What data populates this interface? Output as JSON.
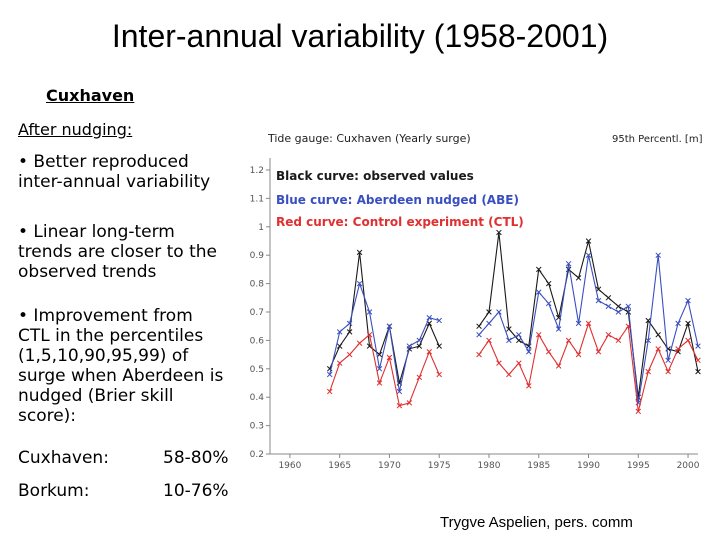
{
  "title": "Inter-annual variability (1958-2001)",
  "station": "Cuxhaven",
  "after_heading": "After nudging:",
  "bullets": [
    "• Better reproduced\ninter-annual variability",
    "• Linear long-term\ntrends are closer to the\nobserved trends",
    "• Improvement from\nCTL in the percentiles\n(1,5,10,90,95,99)  of\nsurge when Aberdeen is\nnudged (Brier skill\nscore):"
  ],
  "scores": [
    {
      "label": "Cuxhaven:",
      "value": "58-80%"
    },
    {
      "label": "Borkum:",
      "value": "10-76%"
    }
  ],
  "credit": "Trygve Aspelien, pers. comm",
  "colors": {
    "observed": "#1a1a1a",
    "aberdeen": "#3a4fbf",
    "control": "#e03030"
  },
  "chart_data": {
    "type": "line",
    "title": "Tide gauge: Cuxhaven (Yearly surge)",
    "subtitle": "95th Percentl. [m]",
    "xlim": [
      1958,
      2001
    ],
    "ylim": [
      0.2,
      1.2
    ],
    "x_ticks": [
      "1960",
      "1965",
      "1970",
      "1975",
      "1980",
      "1985",
      "1990",
      "1995",
      "2000"
    ],
    "y_ticks": [
      "0.2",
      "0.3",
      "0.4",
      "0.5",
      "0.6",
      "0.7",
      "0.8",
      "0.9",
      "1",
      "1.1",
      "1.2"
    ],
    "grid": false,
    "legend": [
      {
        "text": "Black curve: observed values",
        "color": "#1a1a1a",
        "boxed": true
      },
      {
        "text": "Blue curve: Aberdeen nudged (ABE)",
        "color": "#3a4fbf",
        "boxed": false
      },
      {
        "text": "Red curve: Control experiment (CTL)",
        "color": "#e03030",
        "boxed": false
      }
    ],
    "series": [
      {
        "name": "observed",
        "segments": [
          {
            "x": [
              1964,
              1965,
              1966,
              1967,
              1968,
              1969,
              1970,
              1971,
              1972,
              1973,
              1974,
              1975
            ],
            "y": [
              0.5,
              0.58,
              0.63,
              0.91,
              0.58,
              0.55,
              0.65,
              0.45,
              0.57,
              0.58,
              0.66,
              0.58
            ]
          },
          {
            "x": [
              1979,
              1980,
              1981,
              1982,
              1983,
              1984,
              1985,
              1986,
              1987,
              1988,
              1989,
              1990,
              1991,
              1992,
              1993,
              1994,
              1995,
              1996,
              1997,
              1998,
              1999,
              2000,
              2001
            ],
            "y": [
              0.65,
              0.7,
              0.98,
              0.64,
              0.6,
              0.58,
              0.85,
              0.8,
              0.68,
              0.85,
              0.82,
              0.95,
              0.78,
              0.75,
              0.72,
              0.7,
              0.4,
              0.67,
              0.62,
              0.57,
              0.56,
              0.66,
              0.49
            ]
          }
        ]
      },
      {
        "name": "ABE",
        "segments": [
          {
            "x": [
              1964,
              1965,
              1966,
              1967,
              1968,
              1969,
              1970,
              1971,
              1972,
              1973,
              1974,
              1975
            ],
            "y": [
              0.48,
              0.63,
              0.66,
              0.8,
              0.7,
              0.5,
              0.65,
              0.42,
              0.58,
              0.6,
              0.68,
              0.67
            ]
          },
          {
            "x": [
              1979,
              1980,
              1981,
              1982,
              1983,
              1984,
              1985,
              1986,
              1987,
              1988,
              1989,
              1990,
              1991,
              1992,
              1993,
              1994,
              1995,
              1996,
              1997,
              1998,
              1999,
              2000,
              2001
            ],
            "y": [
              0.62,
              0.66,
              0.7,
              0.6,
              0.62,
              0.56,
              0.77,
              0.73,
              0.64,
              0.87,
              0.66,
              0.9,
              0.74,
              0.72,
              0.7,
              0.72,
              0.38,
              0.6,
              0.9,
              0.53,
              0.66,
              0.74,
              0.58
            ]
          }
        ]
      },
      {
        "name": "CTL",
        "segments": [
          {
            "x": [
              1964,
              1965,
              1966,
              1967,
              1968,
              1969,
              1970,
              1971,
              1972,
              1973,
              1974,
              1975
            ],
            "y": [
              0.42,
              0.52,
              0.55,
              0.59,
              0.62,
              0.45,
              0.54,
              0.37,
              0.38,
              0.47,
              0.56,
              0.48
            ]
          },
          {
            "x": [
              1979,
              1980,
              1981,
              1982,
              1983,
              1984,
              1985,
              1986,
              1987,
              1988,
              1989,
              1990,
              1991,
              1992,
              1993,
              1994,
              1995,
              1996,
              1997,
              1998,
              1999,
              2000,
              2001
            ],
            "y": [
              0.55,
              0.6,
              0.52,
              0.48,
              0.52,
              0.44,
              0.62,
              0.56,
              0.51,
              0.6,
              0.55,
              0.66,
              0.56,
              0.62,
              0.6,
              0.65,
              0.35,
              0.49,
              0.57,
              0.49,
              0.57,
              0.6,
              0.53
            ]
          }
        ]
      }
    ]
  }
}
